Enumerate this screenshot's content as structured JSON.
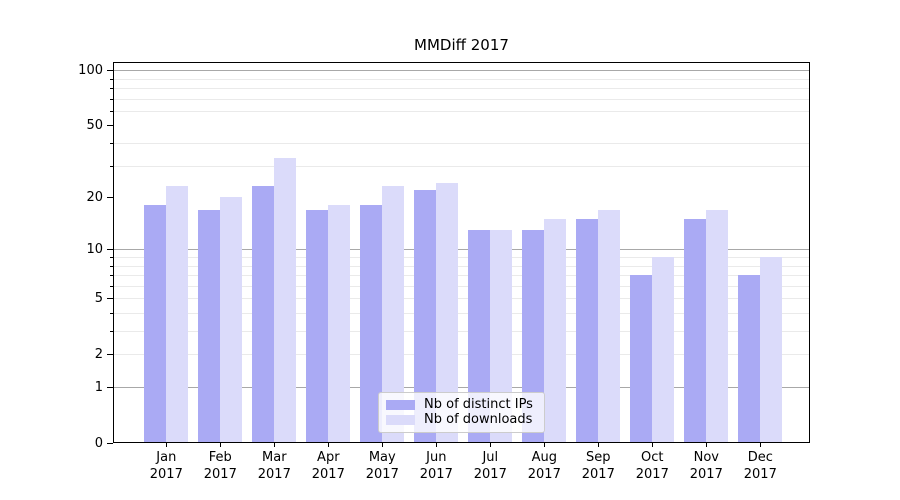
{
  "chart_data": {
    "type": "bar",
    "title": "MMDiff 2017",
    "categories": [
      "Jan",
      "Feb",
      "Mar",
      "Apr",
      "May",
      "Jun",
      "Jul",
      "Aug",
      "Sep",
      "Oct",
      "Nov",
      "Dec"
    ],
    "year_label": "2017",
    "series": [
      {
        "name": "Nb of distinct IPs",
        "color": "#aaaaf4",
        "values": [
          18,
          17,
          23,
          17,
          18,
          22,
          13,
          13,
          15,
          7,
          15,
          7
        ]
      },
      {
        "name": "Nb of downloads",
        "color": "#dbdbfa",
        "values": [
          23,
          20,
          33,
          18,
          23,
          24,
          13,
          15,
          17,
          9,
          17,
          9
        ]
      }
    ],
    "xlabel": "",
    "ylabel": "",
    "yscale": "log1p",
    "ylim": [
      0,
      110
    ],
    "yticks_labeled": [
      100,
      50,
      20,
      10,
      5,
      2,
      1,
      0
    ],
    "yticks_major": [
      100,
      10,
      1
    ],
    "yticks_minor": [
      90,
      80,
      70,
      60,
      40,
      30,
      9,
      8,
      7,
      6,
      5,
      4,
      3,
      2
    ],
    "grid": true,
    "legend_position": "lower center"
  },
  "colors": {
    "grid_major": "#a8a8a8",
    "grid_minor": "#eaeaea",
    "spine": "#000000"
  }
}
